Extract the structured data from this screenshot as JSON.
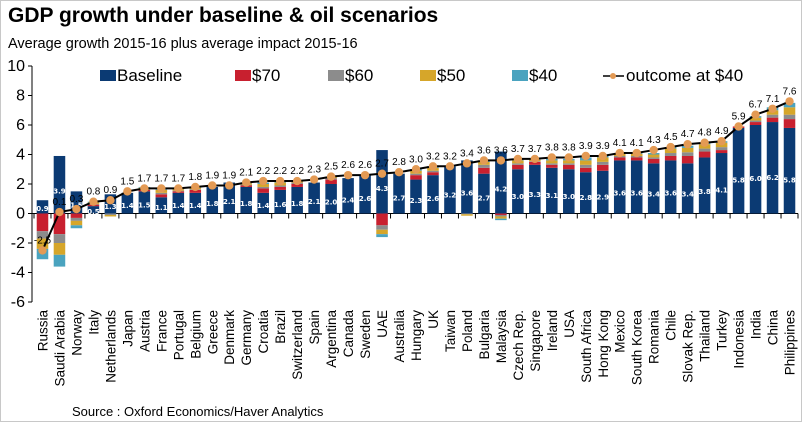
{
  "page": {
    "title": "GDP growth under baseline & oil scenarios",
    "subtitle": "Average growth 2015-16 plus average impact 2015-16",
    "source": "Source : Oxford Economics/Haver Analytics"
  },
  "colors": {
    "baseline": "#0b3a73",
    "s70": "#c8202f",
    "s60": "#8c8c8c",
    "s50": "#d6a62a",
    "s40": "#4aa3bf",
    "line": "#000000",
    "marker": "#e39a54"
  },
  "chart_data": {
    "type": "bar",
    "stacked": true,
    "title": "GDP growth under baseline & oil scenarios",
    "subtitle": "Average growth 2015-16 plus average impact 2015-16",
    "xlabel": "",
    "ylabel": "",
    "ylim": [
      -6,
      10
    ],
    "yticks": [
      -6,
      -4,
      -2,
      0,
      2,
      4,
      6,
      8,
      10
    ],
    "grid": false,
    "legend_position": "top",
    "legend": [
      "Baseline",
      "$70",
      "$60",
      "$50",
      "$40",
      "outcome at $40"
    ],
    "categories": [
      "Russia",
      "Saudi Arabia",
      "Norway",
      "Italy",
      "Netherlands",
      "Japan",
      "Austria",
      "France",
      "Portugal",
      "Belgium",
      "Greece",
      "Denmark",
      "Germany",
      "Croatia",
      "Brazil",
      "Switzerland",
      "Spain",
      "Argentina",
      "Canada",
      "Sweden",
      "UAE",
      "Australia",
      "Hungary",
      "UK",
      "Taiwan",
      "Poland",
      "Bulgaria",
      "Malaysia",
      "Czech Rep.",
      "Singapore",
      "Ireland",
      "USA",
      "South Africa",
      "Hong Kong",
      "Mexico",
      "South Korea",
      "Romania",
      "Chile",
      "Slovak Rep.",
      "Thailand",
      "Turkey",
      "Indonesia",
      "India",
      "China",
      "Philippines"
    ],
    "series": [
      {
        "name": "Baseline",
        "values": [
          0.9,
          3.9,
          1.5,
          0.5,
          1.3,
          1.4,
          1.5,
          1.1,
          1.4,
          1.4,
          1.8,
          2.1,
          1.8,
          1.4,
          1.6,
          1.8,
          2.1,
          2.0,
          2.4,
          2.6,
          4.3,
          2.7,
          2.3,
          2.6,
          3.2,
          3.6,
          2.7,
          4.2,
          3.0,
          3.3,
          3.1,
          3.0,
          2.8,
          2.9,
          3.6,
          3.6,
          3.4,
          3.6,
          3.4,
          3.8,
          4.1,
          5.8,
          6.0,
          6.2,
          5.8
        ]
      },
      {
        "name": "$70",
        "values": [
          -1.2,
          -1.4,
          -0.3,
          0.1,
          0.0,
          0.0,
          0.1,
          0.2,
          0.1,
          0.2,
          0.0,
          0.0,
          0.1,
          0.3,
          0.2,
          0.2,
          0.0,
          0.3,
          0.0,
          0.0,
          -0.8,
          0.0,
          0.3,
          0.2,
          0.0,
          0.0,
          0.4,
          -0.1,
          0.3,
          0.2,
          0.2,
          0.3,
          0.3,
          0.4,
          0.2,
          0.2,
          0.3,
          0.3,
          0.5,
          0.4,
          0.2,
          0.1,
          0.2,
          0.3,
          0.6
        ]
      },
      {
        "name": "$60",
        "values": [
          -0.5,
          -0.6,
          -0.2,
          0.05,
          -0.1,
          0.0,
          0.05,
          0.1,
          0.05,
          0.05,
          0.0,
          0.0,
          0.05,
          0.1,
          0.1,
          0.1,
          0.0,
          0.1,
          0.0,
          0.0,
          -0.3,
          0.0,
          0.1,
          0.1,
          0.0,
          -0.05,
          0.2,
          -0.1,
          0.1,
          0.05,
          0.1,
          0.1,
          0.2,
          0.2,
          0.1,
          0.1,
          0.1,
          0.2,
          0.25,
          0.2,
          0.2,
          0.0,
          0.1,
          0.2,
          0.3
        ]
      },
      {
        "name": "$50",
        "values": [
          -0.7,
          -0.8,
          -0.3,
          0.1,
          -0.1,
          0.0,
          0.1,
          0.2,
          0.1,
          0.1,
          0.0,
          0.0,
          0.1,
          0.2,
          0.2,
          0.1,
          0.0,
          0.1,
          0.0,
          0.0,
          -0.3,
          0.0,
          0.2,
          0.2,
          0.0,
          -0.1,
          0.2,
          -0.15,
          0.2,
          0.1,
          0.2,
          0.2,
          0.3,
          0.3,
          0.15,
          0.15,
          0.2,
          0.3,
          0.3,
          0.3,
          0.3,
          0.0,
          0.2,
          0.3,
          0.5
        ]
      },
      {
        "name": "$40",
        "values": [
          -0.7,
          -0.8,
          -0.2,
          0.05,
          0.0,
          0.0,
          0.05,
          0.05,
          0.05,
          0.05,
          0.0,
          0.0,
          0.05,
          0.1,
          0.1,
          0.0,
          0.0,
          0.0,
          0.0,
          0.0,
          -0.2,
          0.0,
          0.1,
          0.1,
          0.0,
          0.0,
          0.1,
          -0.1,
          0.1,
          0.1,
          0.1,
          0.1,
          0.2,
          0.1,
          0.05,
          0.05,
          0.1,
          0.1,
          0.15,
          0.1,
          0.1,
          0.0,
          0.1,
          0.2,
          0.3
        ]
      }
    ],
    "outcome_at_40": {
      "name": "outcome at $40",
      "values": [
        -2.5,
        0.1,
        0.3,
        0.8,
        0.9,
        1.5,
        1.7,
        1.7,
        1.7,
        1.8,
        1.9,
        1.9,
        2.1,
        2.2,
        2.2,
        2.2,
        2.3,
        2.5,
        2.6,
        2.6,
        2.7,
        2.8,
        3.0,
        3.2,
        3.2,
        3.4,
        3.6,
        3.6,
        3.7,
        3.7,
        3.8,
        3.8,
        3.9,
        3.9,
        4.1,
        4.1,
        4.3,
        4.5,
        4.7,
        4.8,
        4.9,
        5.9,
        6.7,
        7.1,
        7.6
      ],
      "labels": [
        "-2.5",
        "0.1",
        "0.3",
        "0.8",
        "0.9",
        "1.5",
        "1.7",
        "1.7",
        "1.7",
        "1.8",
        "1.9",
        "1.9",
        "2.1",
        "2.2",
        "2.2",
        "2.2",
        "2.3",
        "2.5",
        "2.6",
        "2.6",
        "2.7",
        "2.8",
        "3.0",
        "3.2",
        "3.2",
        "3.4",
        "3.6",
        "3.6",
        "3.7",
        "3.7",
        "3.8",
        "3.8",
        "3.9",
        "3.9",
        "4.1",
        "4.1",
        "4.3",
        "4.5",
        "4.7",
        "4.8",
        "4.9",
        "5.9",
        "6.7",
        "7.1",
        "7.6"
      ]
    },
    "baseline_labels": [
      "0.9",
      "3.9",
      "1.5",
      "0.5",
      "1.3",
      "1.4",
      "1.5",
      "1.1",
      "1.4",
      "1.4",
      "1.8",
      "2.1",
      "1.8",
      "1.4",
      "1.6",
      "1.8",
      "2.1",
      "2.0",
      "2.4",
      "2.6",
      "4.3",
      "2.7",
      "2.3",
      "2.6",
      "3.2",
      "3.6",
      "2.7",
      "4.2",
      "3.0",
      "3.3",
      "3.1",
      "3.0",
      "2.8",
      "2.9",
      "3.6",
      "3.6",
      "3.4",
      "3.6",
      "3.4",
      "3.8",
      "4.1",
      "5.8",
      "6.0",
      "6.2",
      "5.8"
    ]
  }
}
